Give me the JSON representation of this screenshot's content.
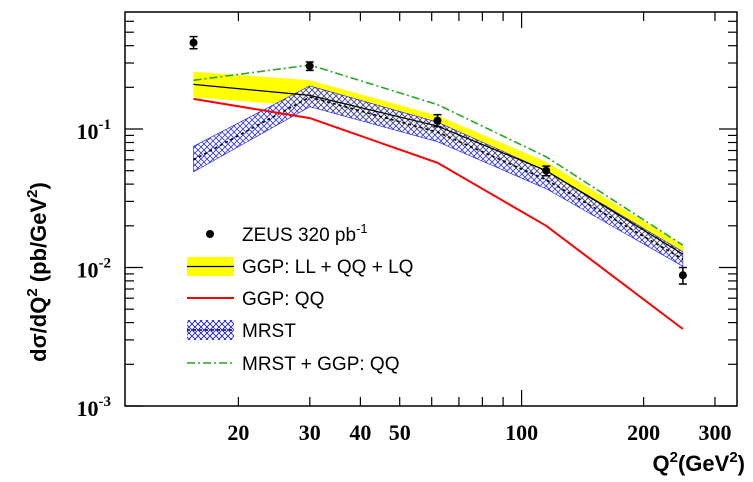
{
  "chart_data": {
    "type": "line",
    "xlabel_main": "Q",
    "xlabel_sup": "2",
    "xlabel_unit": "(GeV",
    "xlabel_unit_sup": "2",
    "xlabel_close": ")",
    "ylabel_main": "dσ/dQ",
    "ylabel_sup": "2",
    "ylabel_unit": " (pb/GeV",
    "ylabel_unit_sup": "2",
    "ylabel_close": ")",
    "xscale": "log",
    "yscale": "log",
    "xlim": [
      10.5,
      340
    ],
    "ylim": [
      0.001,
      0.7
    ],
    "x_ticks": [
      {
        "value": 20,
        "label": "20"
      },
      {
        "value": 30,
        "label": "30"
      },
      {
        "value": 40,
        "label": "40"
      },
      {
        "value": 50,
        "label": "50"
      },
      {
        "value": 100,
        "label": "100"
      },
      {
        "value": 200,
        "label": "200"
      },
      {
        "value": 300,
        "label": "300"
      }
    ],
    "y_ticks": [
      {
        "value": 0.001,
        "base": "10",
        "exp": "-3"
      },
      {
        "value": 0.01,
        "base": "10",
        "exp": "-2"
      },
      {
        "value": 0.1,
        "base": "10",
        "exp": "-1"
      }
    ],
    "legend_position": "bottom-left",
    "series": [
      {
        "name": "ZEUS 320 pb",
        "name_sup": "-1",
        "kind": "points",
        "color": "#000000",
        "x": [
          15.5,
          30,
          62,
          115,
          250
        ],
        "y": [
          0.42,
          0.285,
          0.115,
          0.05,
          0.0088
        ],
        "yerr_low": [
          0.04,
          0.02,
          0.011,
          0.004,
          0.0012
        ],
        "yerr_high": [
          0.045,
          0.02,
          0.012,
          0.004,
          0.0012
        ]
      },
      {
        "name": "GGP: LL + QQ + LQ",
        "kind": "band_line",
        "fill": "#ffff00",
        "line_color": "#000000",
        "x": [
          15.5,
          30,
          62,
          115,
          250
        ],
        "y": [
          0.21,
          0.175,
          0.105,
          0.05,
          0.0125
        ],
        "y_low": [
          0.17,
          0.145,
          0.09,
          0.043,
          0.011
        ],
        "y_high": [
          0.26,
          0.225,
          0.125,
          0.058,
          0.0145
        ]
      },
      {
        "name": "GGP: QQ",
        "kind": "line",
        "color": "#ff0000",
        "x": [
          15.5,
          30,
          62,
          115,
          250
        ],
        "y": [
          0.165,
          0.12,
          0.057,
          0.02,
          0.0036
        ]
      },
      {
        "name": "MRST",
        "kind": "hatch_band",
        "color": "#1a1adc",
        "x": [
          15.5,
          30,
          62,
          115,
          250
        ],
        "y": [
          0.06,
          0.17,
          0.095,
          0.043,
          0.0115
        ],
        "y_low": [
          0.049,
          0.145,
          0.081,
          0.037,
          0.0102
        ],
        "y_high": [
          0.075,
          0.205,
          0.112,
          0.05,
          0.013
        ]
      },
      {
        "name": "MRST + GGP: QQ",
        "kind": "dashdot",
        "color": "#22aa22",
        "x": [
          15.5,
          30,
          62,
          115,
          250
        ],
        "y": [
          0.225,
          0.29,
          0.15,
          0.063,
          0.0145
        ]
      }
    ]
  }
}
